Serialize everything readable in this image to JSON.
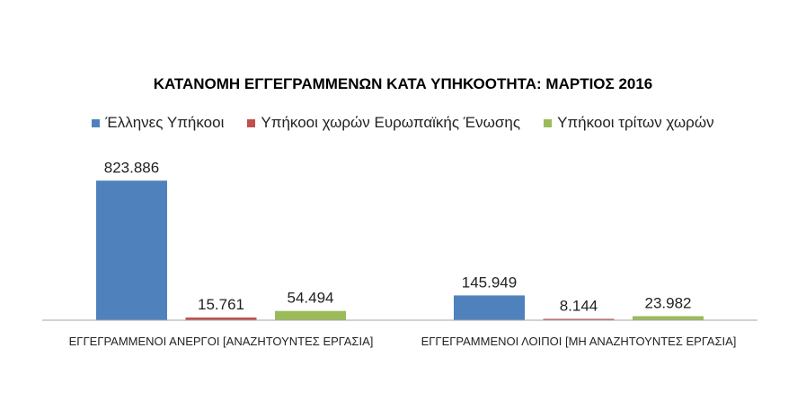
{
  "chart_data": {
    "type": "bar",
    "title": "ΚΑΤΑΝΟΜΗ ΕΓΓΕΓΡΑΜΜΕΝΩΝ ΚΑΤΑ ΥΠΗΚΟΟΤΗΤΑ: ΜΑΡΤΙΟΣ 2016",
    "categories": [
      "ΕΓΓΕΓΡΑΜΜΕΝΟΙ ΑΝΕΡΓΟΙ [ΑΝΑΖΗΤΟΥΝΤΕΣ ΕΡΓΑΣΙΑ]",
      "ΕΓΓΕΓΡΑΜΜΕΝΟΙ ΛΟΙΠΟΙ [ΜΗ ΑΝΑΖΗΤΟΥΝΤΕΣ ΕΡΓΑΣΙΑ]"
    ],
    "series": [
      {
        "name": "Έλληνες Υπήκοοι",
        "color": "#4F81BD",
        "values": [
          823886,
          145949
        ],
        "labels": [
          "823.886",
          "145.949"
        ]
      },
      {
        "name": "Υπήκοοι χωρών Ευρωπαϊκής Ένωσης",
        "color": "#C0504D",
        "values": [
          15761,
          8144
        ],
        "labels": [
          "15.761",
          "8.144"
        ]
      },
      {
        "name": "Υπήκοοι τρίτων χωρών",
        "color": "#9BBB59",
        "values": [
          54494,
          23982
        ],
        "labels": [
          "54.494",
          "23.982"
        ]
      }
    ],
    "ylim": [
      0,
      900000
    ],
    "legend_position": "top",
    "grid": false
  }
}
